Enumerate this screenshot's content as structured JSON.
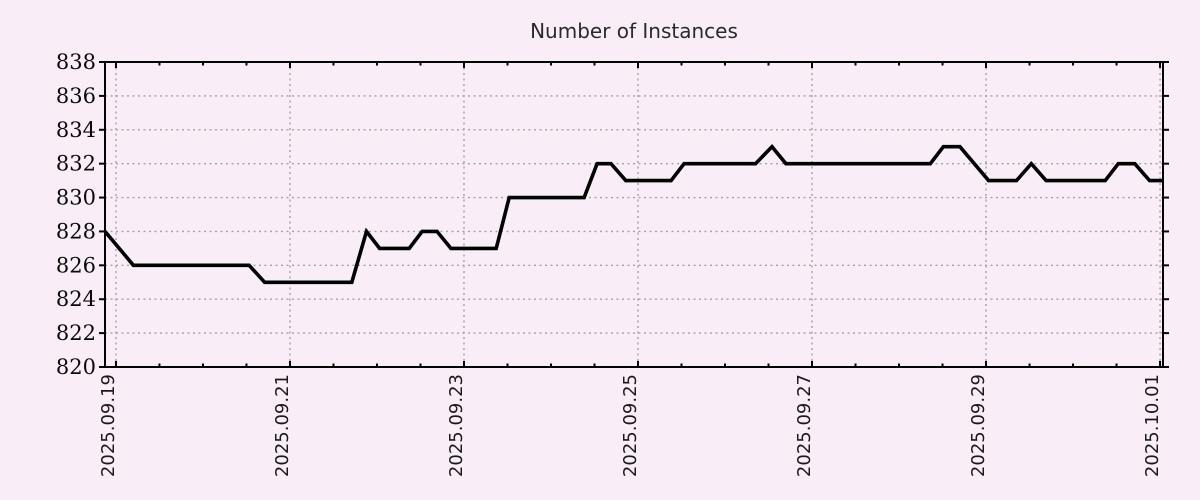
{
  "page": {
    "background_color": "#f9eef8"
  },
  "chart_data": {
    "type": "line",
    "title": "Number of Instances",
    "xlabel": "",
    "ylabel": "",
    "x_unit": "days since 2025.09.19 00:00",
    "xlim": [
      -0.126,
      12.034
    ],
    "ylim": [
      820,
      838
    ],
    "grid": {
      "show": true,
      "style": "dashed",
      "color": "#a2a2a2"
    },
    "legend": "none",
    "axis_color": "#000000",
    "y_ticks": [
      820,
      822,
      824,
      826,
      828,
      830,
      832,
      834,
      836,
      838
    ],
    "x_major_ticks": [
      {
        "day": 0,
        "label": "2025.09.19"
      },
      {
        "day": 2,
        "label": "2025.09.21"
      },
      {
        "day": 4,
        "label": "2025.09.23"
      },
      {
        "day": 6,
        "label": "2025.09.25"
      },
      {
        "day": 8,
        "label": "2025.09.27"
      },
      {
        "day": 10,
        "label": "2025.09.29"
      },
      {
        "day": 12,
        "label": "2025.10.01"
      }
    ],
    "x_minor_step_days": 0.5,
    "series": [
      {
        "name": "instances",
        "color": "#000000",
        "line_width": 3.6,
        "points": [
          [
            -0.126,
            828
          ],
          [
            0.2,
            826
          ],
          [
            1.53,
            826
          ],
          [
            1.71,
            825
          ],
          [
            2.71,
            825
          ],
          [
            2.88,
            828
          ],
          [
            3.03,
            827
          ],
          [
            3.37,
            827
          ],
          [
            3.52,
            828
          ],
          [
            3.69,
            828
          ],
          [
            3.85,
            827
          ],
          [
            4.37,
            827
          ],
          [
            4.52,
            830
          ],
          [
            5.38,
            830
          ],
          [
            5.53,
            832
          ],
          [
            5.69,
            832
          ],
          [
            5.86,
            831
          ],
          [
            6.38,
            831
          ],
          [
            6.53,
            832
          ],
          [
            7.35,
            832
          ],
          [
            7.54,
            833
          ],
          [
            7.7,
            832
          ],
          [
            9.36,
            832
          ],
          [
            9.51,
            833
          ],
          [
            9.7,
            833
          ],
          [
            10.03,
            831
          ],
          [
            10.35,
            831
          ],
          [
            10.52,
            832
          ],
          [
            10.69,
            831
          ],
          [
            11.37,
            831
          ],
          [
            11.52,
            832
          ],
          [
            11.71,
            832
          ],
          [
            11.88,
            831
          ],
          [
            12.034,
            831
          ]
        ]
      }
    ]
  }
}
